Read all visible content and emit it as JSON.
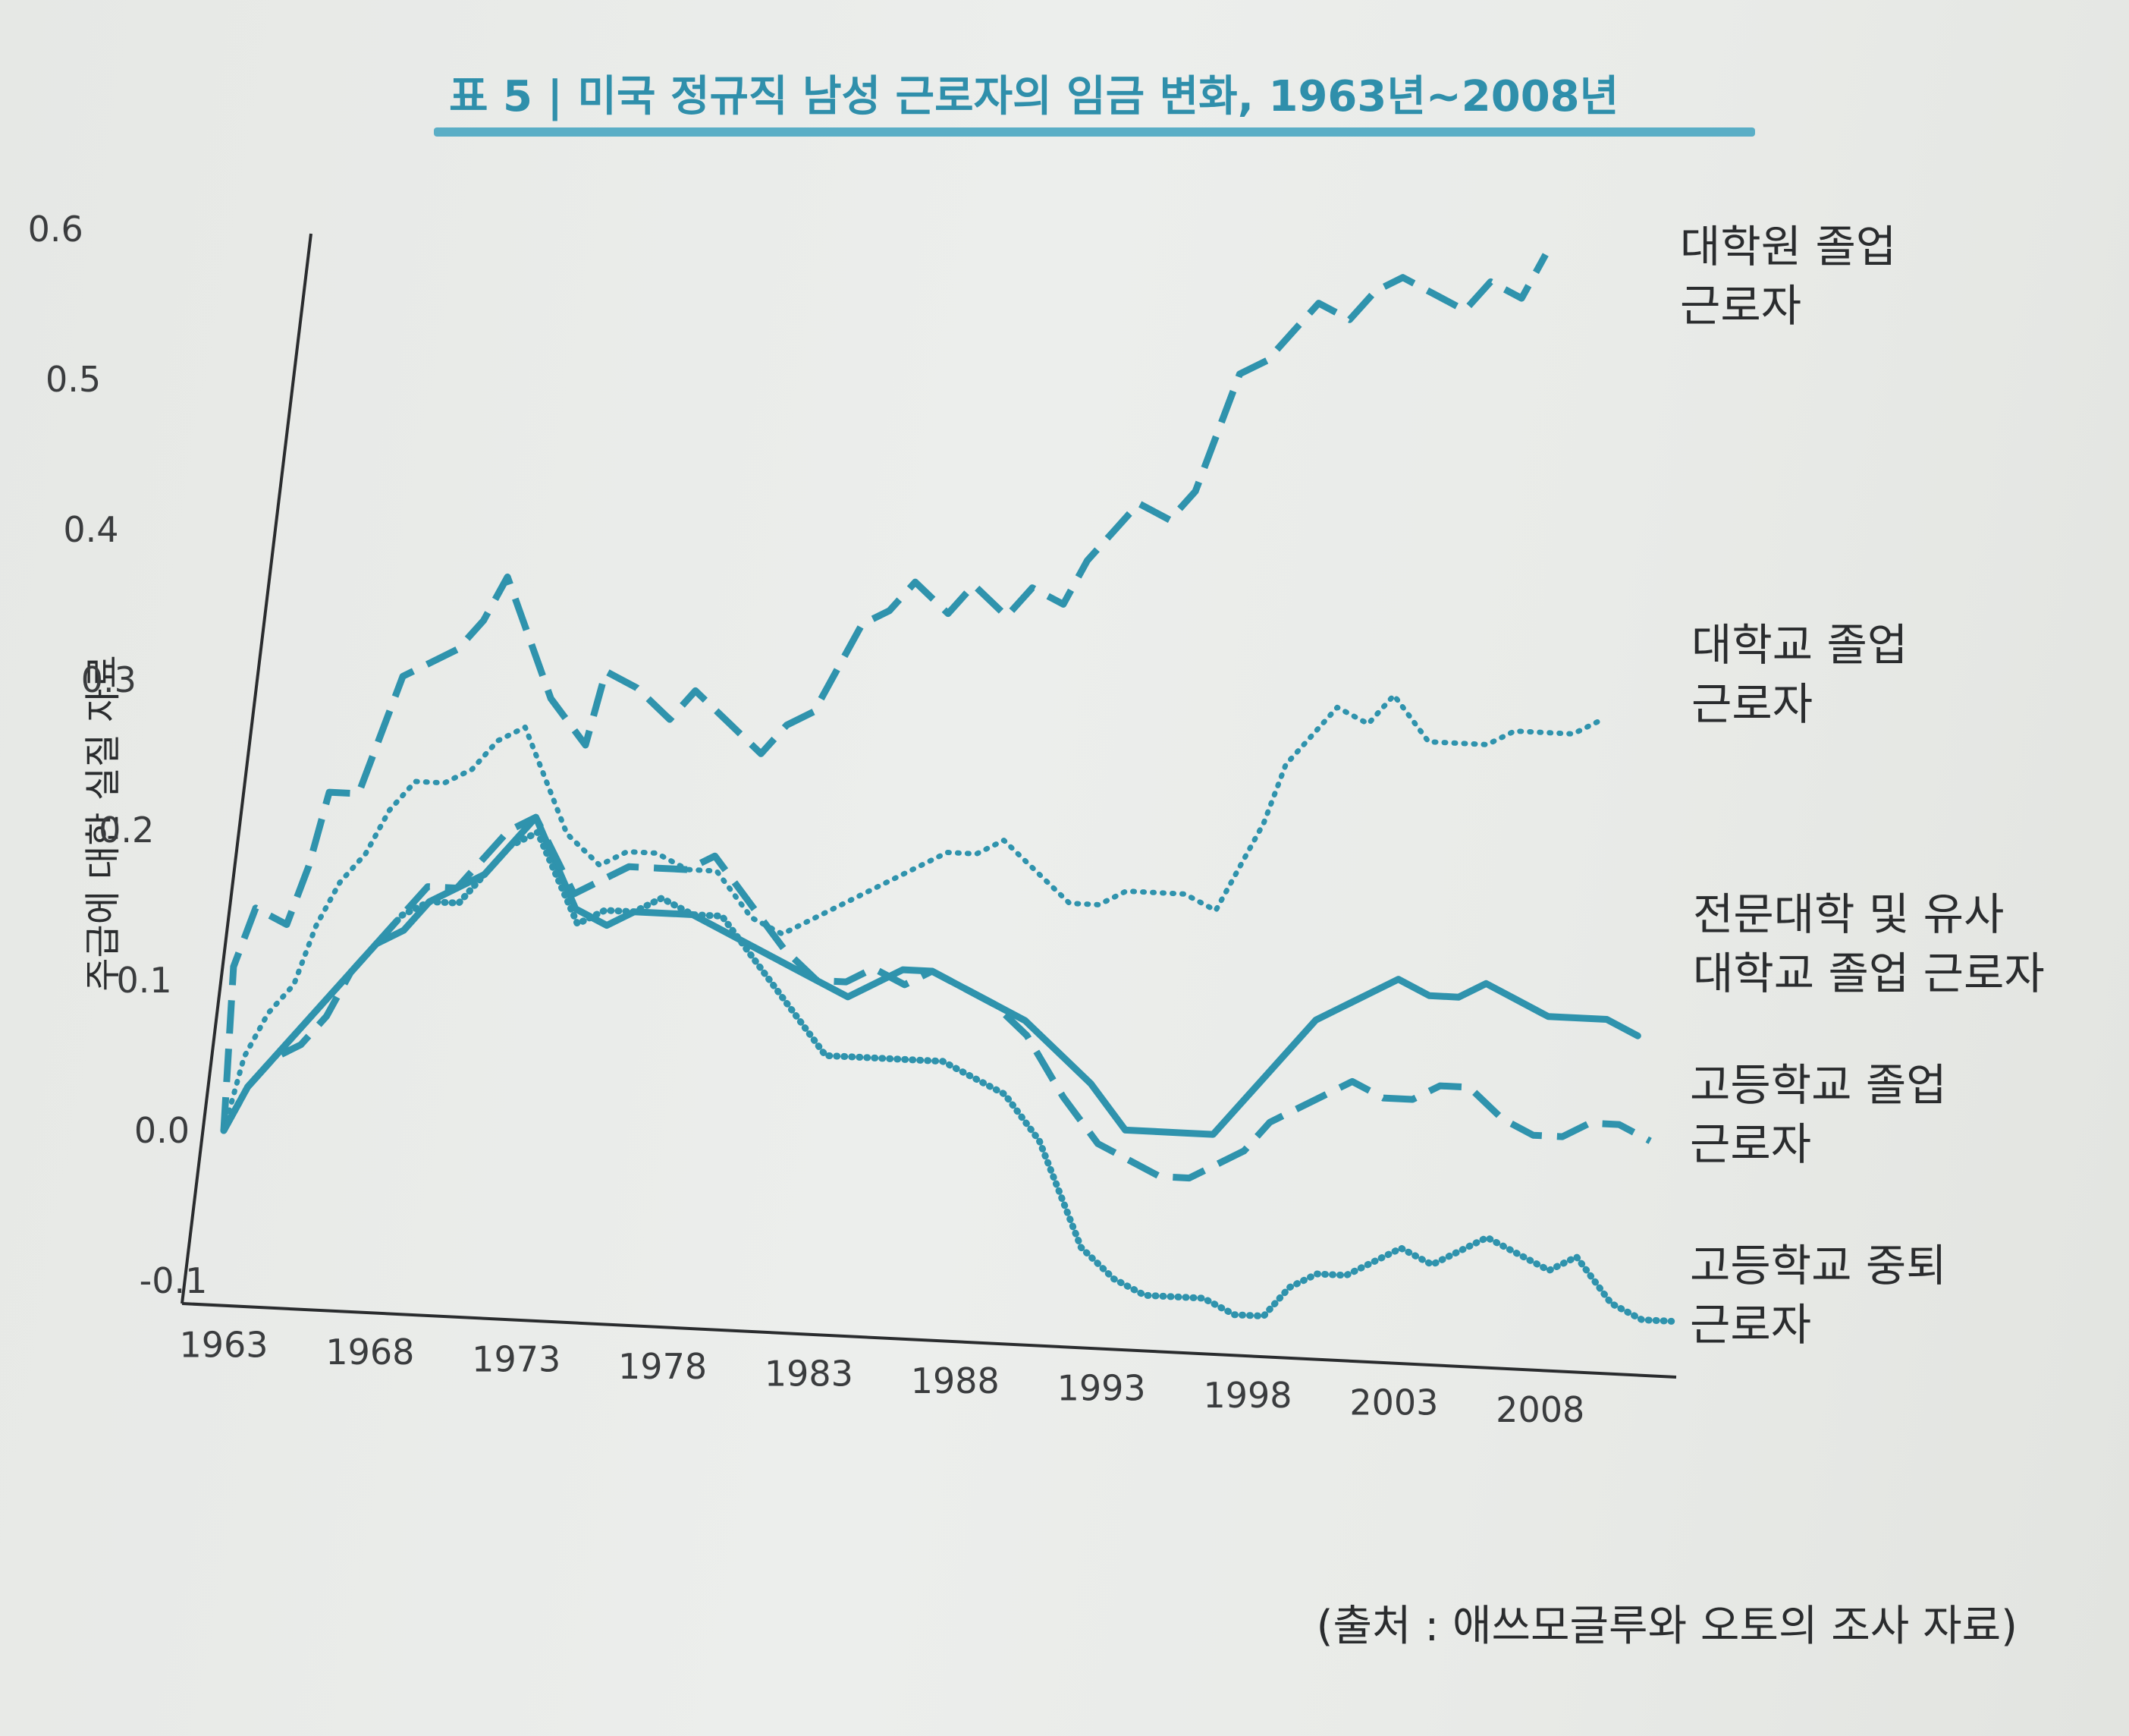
{
  "chart_data": {
    "type": "line",
    "title": "표 5 | 미국 정규직 남성 근로자의 임금 변화, 1963년~2008년",
    "ylabel": "주급에 대한 실질 자료",
    "xlabel": "",
    "source": "(출처 : 애쓰모글루와 오토의 조사 자료)",
    "xlim": [
      1963,
      2012
    ],
    "ylim": [
      -0.1,
      0.65
    ],
    "x_ticks": [
      1963,
      1968,
      1973,
      1978,
      1983,
      1988,
      1993,
      1998,
      2003,
      2008
    ],
    "x_tick_labels": [
      "1963",
      "1968",
      "1973",
      "1978",
      "1983",
      "1988",
      "1993",
      "1998",
      "2003",
      "2008"
    ],
    "y_ticks": [
      0.6,
      0.5,
      0.4,
      0.3,
      0.2,
      0.1,
      0.0,
      -0.1
    ],
    "y_tick_labels": [
      "0.6",
      "0.5",
      "0.4",
      "0.3",
      "0.2",
      "0.1",
      "0.0",
      "-0.1"
    ],
    "x": [
      1963,
      1964,
      1965,
      1966,
      1967,
      1968,
      1969,
      1970,
      1971,
      1972,
      1973,
      1974,
      1975,
      1976,
      1977,
      1978,
      1979,
      1980,
      1981,
      1982,
      1983,
      1984,
      1985,
      1986,
      1987,
      1988,
      1989,
      1990,
      1991,
      1992,
      1993,
      1994,
      1995,
      1996,
      1997,
      1998,
      1999,
      2000,
      2001,
      2002,
      2003,
      2004,
      2005,
      2006,
      2007,
      2008,
      2009,
      2010,
      2011,
      2012
    ],
    "series": [
      {
        "name": "대학원 졸업 근로자",
        "label_lines": [
          "대학원 졸업",
          "근로자"
        ],
        "style": "dashed",
        "values": [
          0.0,
          0.11,
          0.15,
          0.14,
          0.18,
          0.23,
          0.23,
          0.27,
          0.31,
          0.32,
          0.33,
          0.35,
          0.38,
          0.3,
          0.27,
          0.32,
          0.31,
          0.29,
          0.31,
          0.29,
          0.27,
          0.29,
          0.3,
          0.33,
          0.36,
          0.37,
          0.39,
          0.37,
          0.39,
          0.37,
          0.39,
          0.38,
          0.41,
          0.43,
          0.45,
          0.44,
          0.46,
          0.5,
          0.54,
          0.55,
          0.57,
          0.59,
          0.58,
          0.6,
          0.61,
          0.6,
          0.59,
          0.61,
          0.6,
          0.63
        ]
      },
      {
        "name": "대학교 졸업 근로자",
        "label_lines": [
          "대학교 졸업",
          "근로자"
        ],
        "style": "dotted",
        "values": [
          0.0,
          0.05,
          0.08,
          0.1,
          0.14,
          0.17,
          0.19,
          0.22,
          0.24,
          0.24,
          0.25,
          0.27,
          0.28,
          0.21,
          0.19,
          0.2,
          0.2,
          0.19,
          0.19,
          0.16,
          0.15,
          0.16,
          0.17,
          0.18,
          0.19,
          0.2,
          0.21,
          0.21,
          0.22,
          0.2,
          0.18,
          0.18,
          0.19,
          0.19,
          0.19,
          0.18,
          0.21,
          0.24,
          0.28,
          0.3,
          0.32,
          0.31,
          0.33,
          0.3,
          0.3,
          0.3,
          0.31,
          0.31,
          0.31,
          0.32
        ]
      },
      {
        "name": "전문대학 및 유사 대학교 졸업 근로자",
        "label_lines": [
          "전문대학 및 유사",
          "대학교 졸업 근로자"
        ],
        "style": "solid",
        "values": [
          0.0,
          0.03,
          0.05,
          0.07,
          0.09,
          0.11,
          0.13,
          0.14,
          0.16,
          0.17,
          0.18,
          0.2,
          0.22,
          0.16,
          0.15,
          0.16,
          0.16,
          0.16,
          0.15,
          0.14,
          0.13,
          0.12,
          0.11,
          0.12,
          0.13,
          0.13,
          0.12,
          0.11,
          0.1,
          0.08,
          0.06,
          0.03,
          0.03,
          0.03,
          0.03,
          0.05,
          0.07,
          0.09,
          0.11,
          0.12,
          0.13,
          0.14,
          0.13,
          0.13,
          0.14,
          0.13,
          0.12,
          0.12,
          0.12,
          0.11
        ]
      },
      {
        "name": "고등학교 졸업 근로자",
        "label_lines": [
          "고등학교 졸업",
          "근로자"
        ],
        "style": "dashed",
        "values": [
          0.0,
          0.03,
          0.05,
          0.06,
          0.08,
          0.11,
          0.13,
          0.15,
          0.17,
          0.17,
          0.19,
          0.21,
          0.22,
          0.17,
          0.18,
          0.19,
          0.19,
          0.19,
          0.2,
          0.17,
          0.14,
          0.12,
          0.12,
          0.13,
          0.12,
          0.13,
          0.12,
          0.11,
          0.09,
          0.05,
          0.02,
          0.01,
          0.0,
          0.0,
          0.01,
          0.02,
          0.04,
          0.05,
          0.06,
          0.07,
          0.06,
          0.06,
          0.07,
          0.07,
          0.05,
          0.04,
          0.04,
          0.05,
          0.05,
          0.04
        ]
      },
      {
        "name": "고등학교 중퇴 근로자",
        "label_lines": [
          "고등학교 중퇴",
          "근로자"
        ],
        "style": "dotted-thick",
        "values": [
          0.0,
          0.03,
          0.05,
          0.07,
          0.09,
          0.11,
          0.13,
          0.15,
          0.16,
          0.16,
          0.18,
          0.2,
          0.21,
          0.15,
          0.16,
          0.16,
          0.17,
          0.16,
          0.16,
          0.13,
          0.1,
          0.07,
          0.07,
          0.07,
          0.07,
          0.07,
          0.06,
          0.05,
          0.02,
          -0.05,
          -0.07,
          -0.08,
          -0.08,
          -0.08,
          -0.09,
          -0.09,
          -0.07,
          -0.06,
          -0.06,
          -0.05,
          -0.04,
          -0.05,
          -0.04,
          -0.03,
          -0.04,
          -0.05,
          -0.04,
          -0.07,
          -0.08,
          -0.08
        ]
      }
    ],
    "grid": false,
    "legend": "right"
  },
  "colors": {
    "line": "#2f93ad",
    "axis": "#2a2c2e",
    "title": "#2f8fab",
    "title_underline": "#5aaec6"
  }
}
